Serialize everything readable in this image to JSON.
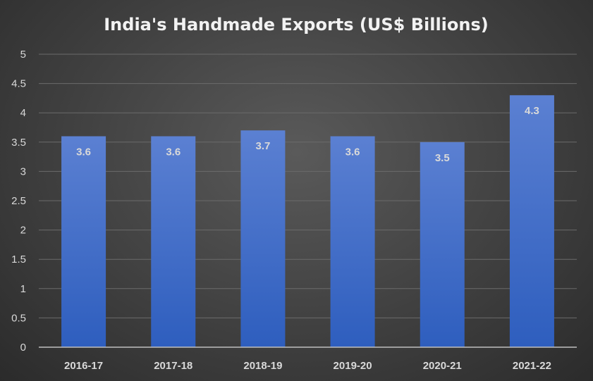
{
  "chart_data": {
    "type": "bar",
    "title": "India's Handmade Exports (US$ Billions)",
    "categories": [
      "2016-17",
      "2017-18",
      "2018-19",
      "2019-20",
      "2020-21",
      "2021-22"
    ],
    "values": [
      3.6,
      3.6,
      3.7,
      3.6,
      3.5,
      4.3
    ],
    "data_labels": [
      "3.6",
      "3.6",
      "3.7",
      "3.6",
      "3.5",
      "4.3"
    ],
    "yticks": [
      "0",
      "0.5",
      "1",
      "1.5",
      "2",
      "2.5",
      "3",
      "3.5",
      "4",
      "4.5",
      "5"
    ],
    "ylim": [
      0,
      5
    ],
    "grid": true,
    "legend": "none",
    "colors": {
      "bar_top": "#5b80d2",
      "bar_bottom": "#2e5ebe",
      "grid": "#6b6b6b",
      "axis": "#bfbfbf",
      "text": "#d9d9d9"
    }
  }
}
